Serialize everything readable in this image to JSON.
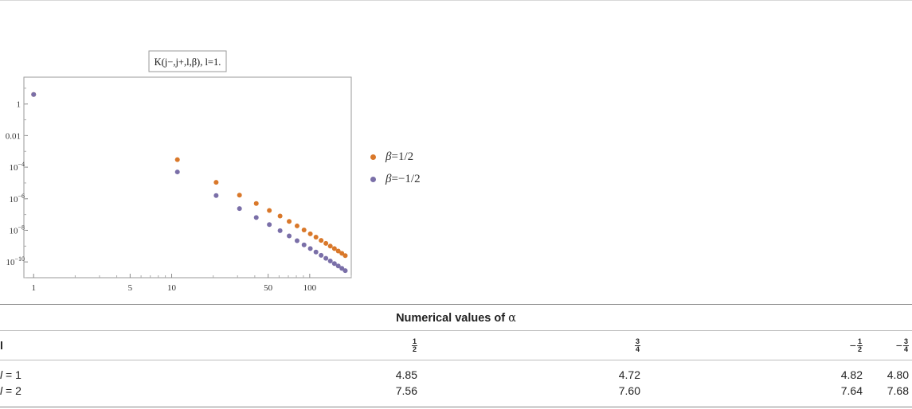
{
  "chart_data": {
    "type": "scatter",
    "title": "K(j−,j+,l,β), l=1.",
    "xscale": "log",
    "yscale": "log",
    "xlim": [
      0.85,
      200
    ],
    "ylim": [
      1e-11,
      50
    ],
    "x_ticks": [
      {
        "v": 1,
        "label": "1"
      },
      {
        "v": 5,
        "label": "5"
      },
      {
        "v": 10,
        "label": "10"
      },
      {
        "v": 50,
        "label": "50"
      },
      {
        "v": 100,
        "label": "100"
      }
    ],
    "y_ticks": [
      {
        "v": 1,
        "label": "1",
        "exp": ""
      },
      {
        "v": 0.01,
        "label": "0.01",
        "exp": ""
      },
      {
        "v": 0.0001,
        "label": "10",
        "exp": "−4"
      },
      {
        "v": 1e-06,
        "label": "10",
        "exp": "−6"
      },
      {
        "v": 1e-08,
        "label": "10",
        "exp": "−8"
      },
      {
        "v": 1e-10,
        "label": "10",
        "exp": "−10"
      }
    ],
    "series": [
      {
        "name": "β=1/2",
        "color": "#d9782a",
        "x": [
          1,
          11,
          21,
          31,
          41,
          51,
          61,
          71,
          81,
          91,
          101,
          111,
          121,
          131,
          141,
          151,
          161,
          171,
          181
        ],
        "y": [
          4,
          0.0003,
          1.1e-05,
          1.7e-06,
          5e-07,
          1.8e-07,
          8e-08,
          3.7e-08,
          1.9e-08,
          1.05e-08,
          6e-09,
          3.7e-09,
          2.3e-09,
          1.5e-09,
          1e-09,
          7e-10,
          4.9e-10,
          3.5e-10,
          2.5e-10
        ]
      },
      {
        "name": "β=−1/2",
        "color": "#7a6fa8",
        "x": [
          1,
          11,
          21,
          31,
          41,
          51,
          61,
          71,
          81,
          91,
          101,
          111,
          121,
          131,
          141,
          151,
          161,
          171,
          181
        ],
        "y": [
          4,
          5e-05,
          1.6e-06,
          2.4e-07,
          6.5e-08,
          2.3e-08,
          9.5e-09,
          4.4e-09,
          2.2e-09,
          1.2e-09,
          7e-10,
          4.2e-10,
          2.6e-10,
          1.7e-10,
          1.15e-10,
          7.8e-11,
          5.5e-11,
          3.9e-11,
          2.8e-11
        ]
      }
    ]
  },
  "legend": {
    "items": [
      {
        "prefix": "β",
        "rest": "=1/2",
        "color": "#d9782a"
      },
      {
        "prefix": "β",
        "rest": "=−1/2",
        "color": "#7a6fa8"
      }
    ]
  },
  "table": {
    "caption_text": "Numerical values of ",
    "caption_symbol": "α",
    "header_first": "l",
    "columns": [
      {
        "neg": "",
        "num": "1",
        "den": "2"
      },
      {
        "neg": "",
        "num": "3",
        "den": "4"
      },
      {
        "neg": "−",
        "num": "1",
        "den": "2"
      },
      {
        "neg": "−",
        "num": "3",
        "den": "4"
      }
    ],
    "rows": [
      {
        "l_var": "l",
        "l_rest": " = 1",
        "values": [
          "4.85",
          "4.72",
          "4.82",
          "4.80"
        ]
      },
      {
        "l_var": "l",
        "l_rest": " = 2",
        "values": [
          "7.56",
          "7.60",
          "7.64",
          "7.68"
        ]
      }
    ]
  }
}
